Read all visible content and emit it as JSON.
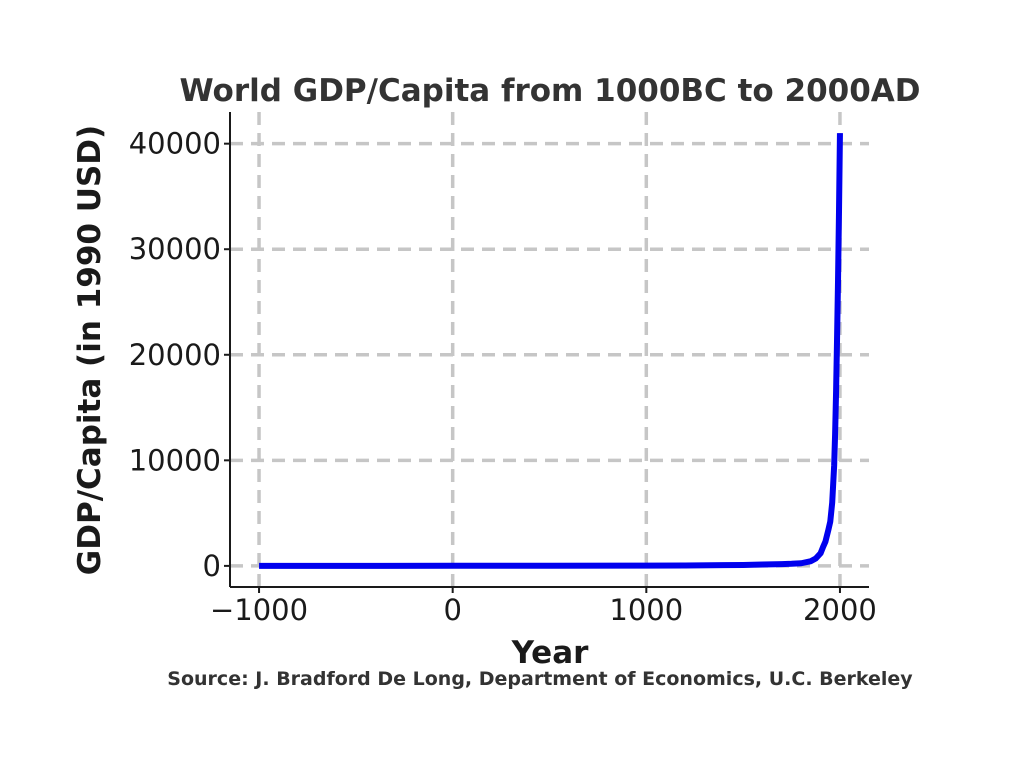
{
  "chart_data": {
    "type": "line",
    "title": "World GDP/Capita from 1000BC to 2000AD",
    "xlabel": "Year",
    "ylabel": "GDP/Capita (in 1990 USD)",
    "source": "Source: J. Bradford De Long, Department of Economics, U.C. Berkeley",
    "xlim": [
      -1150,
      2150
    ],
    "ylim": [
      -2000,
      43000
    ],
    "xticks": [
      -1000,
      0,
      1000,
      2000
    ],
    "xtick_labels": [
      "−1000",
      "0",
      "1000",
      "2000"
    ],
    "yticks": [
      0,
      10000,
      20000,
      30000,
      40000
    ],
    "ytick_labels": [
      "0",
      "10000",
      "20000",
      "30000",
      "40000"
    ],
    "grid": true,
    "line_color": "#0000ee",
    "grid_color": "#c6c6c6",
    "series": [
      {
        "name": "GDP/Capita",
        "x": [
          -1000,
          -500,
          0,
          500,
          1000,
          1200,
          1400,
          1500,
          1600,
          1700,
          1750,
          1800,
          1850,
          1875,
          1900,
          1913,
          1925,
          1940,
          1950,
          1960,
          1970,
          1975,
          1980,
          1985,
          1990,
          1995,
          2000
        ],
        "y": [
          0,
          5,
          10,
          15,
          25,
          40,
          70,
          90,
          130,
          170,
          200,
          250,
          450,
          700,
          1200,
          1800,
          2300,
          3400,
          4200,
          6000,
          9500,
          12500,
          16500,
          21500,
          27000,
          33500,
          41000
        ]
      }
    ]
  }
}
